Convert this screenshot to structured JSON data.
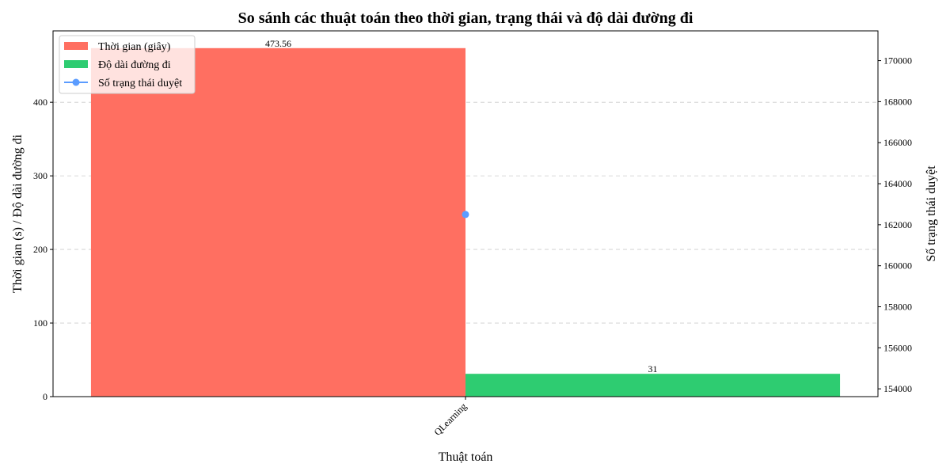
{
  "chart_data": {
    "type": "bar",
    "title": "So sánh các thuật toán theo thời gian, trạng thái và độ dài đường đi",
    "xlabel": "Thuật toán",
    "ylabel": "Thời gian (s) / Độ dài đường đi",
    "y2label": "Số trạng thái duyệt",
    "categories": [
      "QLearning"
    ],
    "ylim": [
      0,
      497
    ],
    "y2lim": [
      153620,
      171450
    ],
    "yticks": [
      0,
      100,
      200,
      300,
      400
    ],
    "y2ticks": [
      154000,
      156000,
      158000,
      160000,
      162000,
      164000,
      166000,
      168000,
      170000
    ],
    "grid": true,
    "legend_position": "top-left",
    "series": [
      {
        "name": "Thời gian (giây)",
        "kind": "bar",
        "axis": "left",
        "color": "#ff6f61",
        "values": [
          473.56
        ],
        "data_labels": [
          "473.56"
        ]
      },
      {
        "name": "Độ dài đường đi",
        "kind": "bar",
        "axis": "left",
        "color": "#2ecc71",
        "values": [
          31
        ],
        "data_labels": [
          "31"
        ]
      },
      {
        "name": "Số trạng thái duyệt",
        "kind": "line",
        "axis": "right",
        "color": "#5b9cff",
        "values": [
          162500
        ]
      }
    ]
  }
}
